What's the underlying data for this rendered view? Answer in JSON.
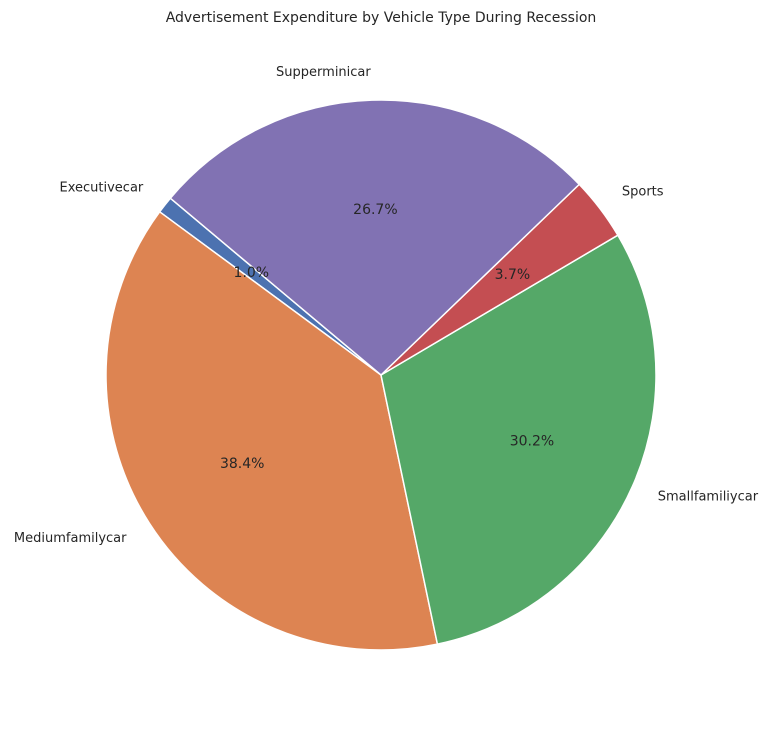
{
  "chart_data": {
    "type": "pie",
    "title": "Advertisement Expenditure by Vehicle Type During Recession",
    "categories": [
      "Executivecar",
      "Mediumfamilycar",
      "Smallfamiliycar",
      "Sports",
      "Supperminicar"
    ],
    "values": [
      1.0,
      38.4,
      30.2,
      3.7,
      26.7
    ],
    "percent_labels": [
      "1.0%",
      "38.4%",
      "30.2%",
      "3.7%",
      "26.7%"
    ],
    "colors": [
      "#4c72b0",
      "#dd8452",
      "#55a868",
      "#c44e52",
      "#8172b3"
    ],
    "start_angle_deg": 140,
    "direction": "counterclockwise",
    "edge_color": "#ffffff",
    "legend": "none"
  }
}
